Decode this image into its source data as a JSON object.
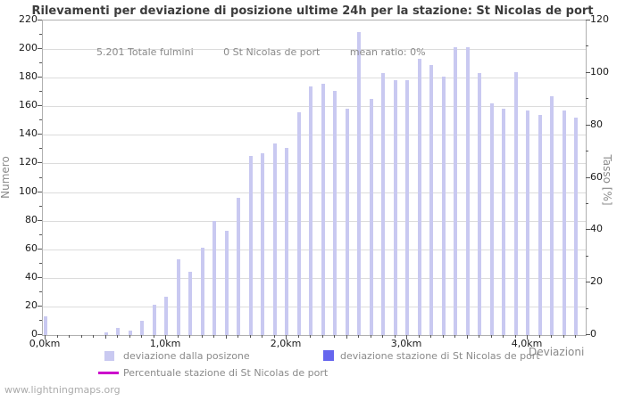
{
  "title": "Rilevamenti per deviazione di posizione ultime 24h per la stazione: St Nicolas de port",
  "stats": {
    "total_strikes": "5.201 Totale fulmini",
    "station_strikes": "0 St Nicolas de port",
    "mean_ratio": "mean ratio: 0%"
  },
  "watermark": "www.lightningmaps.org",
  "colors": {
    "bar_deviation": "#c9c9f1",
    "bar_station": "#6666ee",
    "percent_line": "#cc00cc",
    "grid": "#dcdcdc",
    "frame": "#b0b0b0",
    "axis_text": "#1a1a1a",
    "muted_text": "#8a8a8a",
    "title_text": "#3c3c3c"
  },
  "legend": {
    "items": [
      {
        "label": "deviazione dalla posizone",
        "swatch": "light-purple-square"
      },
      {
        "label": "deviazione stazione di St Nicolas de port",
        "swatch": "blue-square"
      },
      {
        "label": "Percentuale stazione di St Nicolas de port",
        "swatch": "magenta-line"
      }
    ]
  },
  "chart_data": {
    "type": "bar",
    "title": "Rilevamenti per deviazione di posizione ultime 24h per la stazione: St Nicolas de port",
    "xlabel": "Deviazioni",
    "ylabel_left": "Numero",
    "ylabel_right": "Tasso [%]",
    "ylim_left": [
      0,
      220
    ],
    "ylim_right": [
      0,
      120
    ],
    "y_major_step": 20,
    "y_minor_step": 10,
    "grid": "horizontal-only",
    "legend_position": "bottom",
    "x_unit": "km",
    "x_major_tick_labels": [
      "0,0km",
      "1,0km",
      "2,0km",
      "3,0km",
      "4,0km"
    ],
    "x_major_tick_km": [
      0,
      1,
      2,
      3,
      4
    ],
    "categories_km": [
      0.0,
      0.1,
      0.2,
      0.3,
      0.4,
      0.5,
      0.6,
      0.7,
      0.8,
      0.9,
      1.0,
      1.1,
      1.2,
      1.3,
      1.4,
      1.5,
      1.6,
      1.7,
      1.8,
      1.9,
      2.0,
      2.1,
      2.2,
      2.3,
      2.4,
      2.5,
      2.6,
      2.7,
      2.8,
      2.9,
      3.0,
      3.1,
      3.2,
      3.3,
      3.4,
      3.5,
      3.6,
      3.7,
      3.8,
      3.9,
      4.0,
      4.1,
      4.2,
      4.3,
      4.4
    ],
    "series": [
      {
        "name": "deviazione dalla posizone",
        "axis": "left",
        "color": "#c9c9f1",
        "values": [
          13,
          0,
          0,
          0,
          0,
          2,
          5,
          3,
          10,
          21,
          27,
          53,
          44,
          61,
          80,
          73,
          96,
          125,
          127,
          134,
          131,
          156,
          174,
          176,
          171,
          158,
          212,
          165,
          183,
          178,
          178,
          193,
          189,
          181,
          201,
          201,
          183,
          162,
          158,
          184,
          157,
          154,
          167,
          157,
          152
        ]
      },
      {
        "name": "deviazione stazione di St Nicolas de port",
        "axis": "left",
        "color": "#6666ee",
        "values": [
          0,
          0,
          0,
          0,
          0,
          0,
          0,
          0,
          0,
          0,
          0,
          0,
          0,
          0,
          0,
          0,
          0,
          0,
          0,
          0,
          0,
          0,
          0,
          0,
          0,
          0,
          0,
          0,
          0,
          0,
          0,
          0,
          0,
          0,
          0,
          0,
          0,
          0,
          0,
          0,
          0,
          0,
          0,
          0,
          0
        ]
      },
      {
        "name": "Percentuale stazione di St Nicolas de port",
        "axis": "right",
        "type": "line",
        "color": "#cc00cc",
        "values": []
      }
    ]
  }
}
